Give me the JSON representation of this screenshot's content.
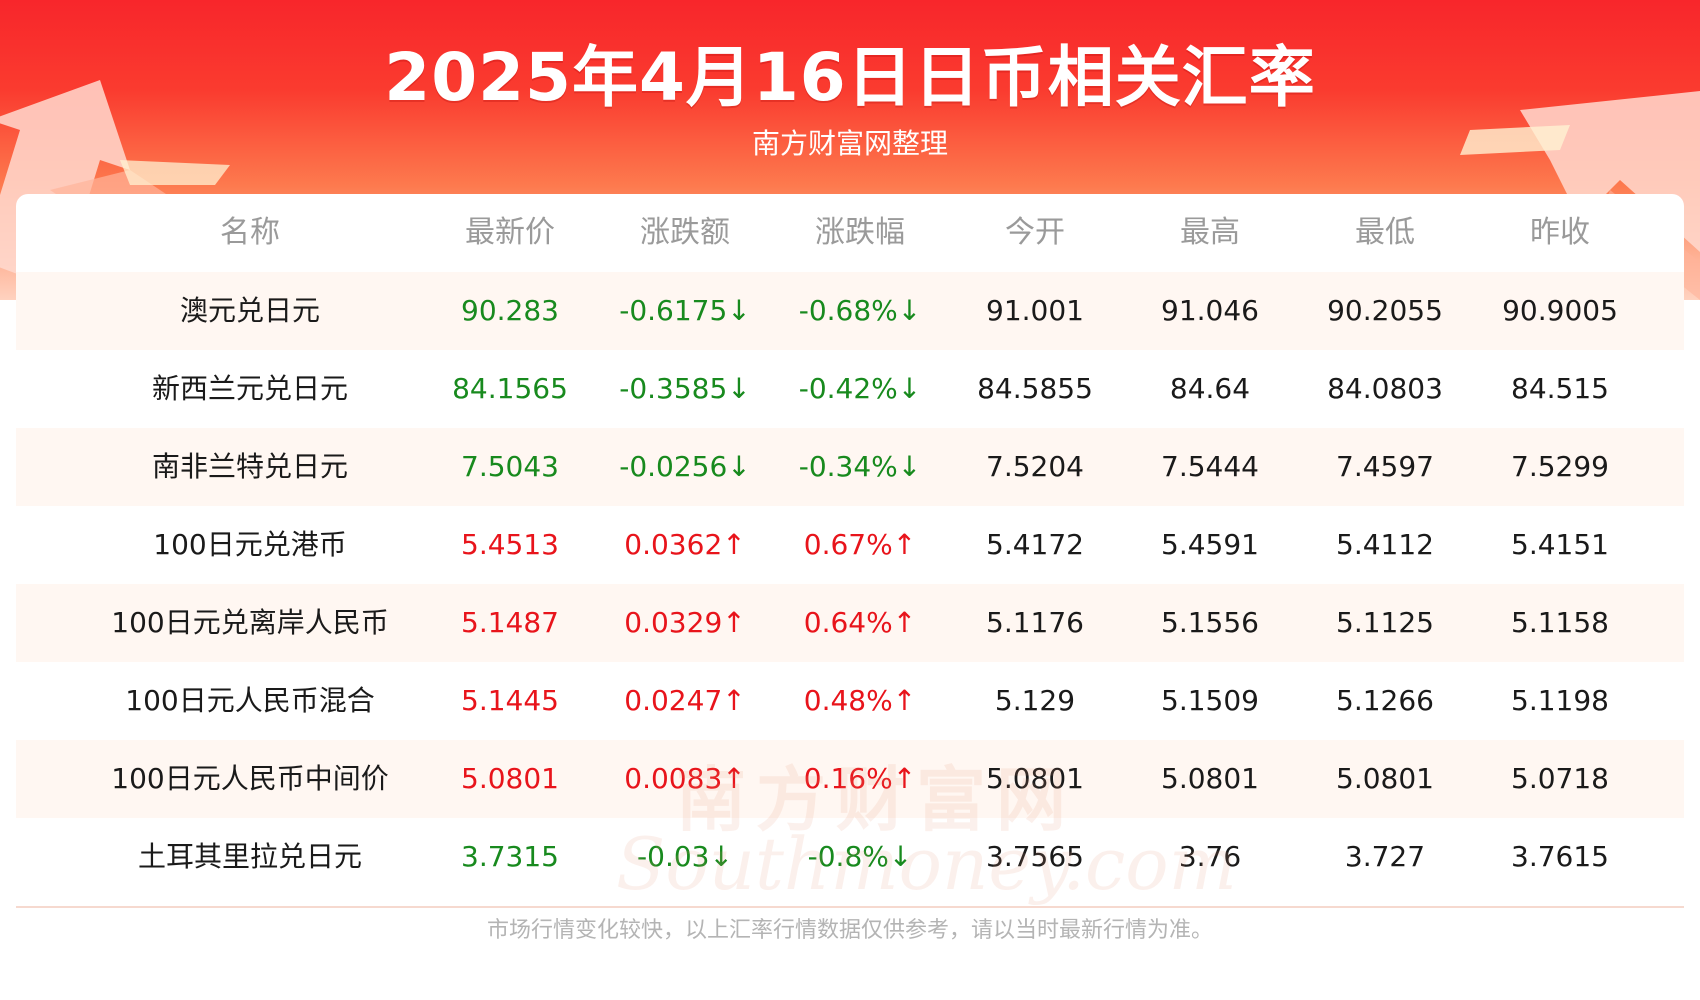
{
  "header": {
    "title": "2025年4月16日日币相关汇率",
    "subtitle": "南方财富网整理"
  },
  "table": {
    "columns": [
      "名称",
      "最新价",
      "涨跌额",
      "涨跌幅",
      "今开",
      "最高",
      "最低",
      "昨收"
    ],
    "rows": [
      {
        "name": "澳元兑日元",
        "latest": "90.283",
        "change": "-0.6175↓",
        "pct": "-0.68%↓",
        "open": "91.001",
        "high": "91.046",
        "low": "90.2055",
        "prev": "90.9005",
        "trend": "down"
      },
      {
        "name": "新西兰元兑日元",
        "latest": "84.1565",
        "change": "-0.3585↓",
        "pct": "-0.42%↓",
        "open": "84.5855",
        "high": "84.64",
        "low": "84.0803",
        "prev": "84.515",
        "trend": "down"
      },
      {
        "name": "南非兰特兑日元",
        "latest": "7.5043",
        "change": "-0.0256↓",
        "pct": "-0.34%↓",
        "open": "7.5204",
        "high": "7.5444",
        "low": "7.4597",
        "prev": "7.5299",
        "trend": "down"
      },
      {
        "name": "100日元兑港币",
        "latest": "5.4513",
        "change": "0.0362↑",
        "pct": "0.67%↑",
        "open": "5.4172",
        "high": "5.4591",
        "low": "5.4112",
        "prev": "5.4151",
        "trend": "up"
      },
      {
        "name": "100日元兑离岸人民币",
        "latest": "5.1487",
        "change": "0.0329↑",
        "pct": "0.64%↑",
        "open": "5.1176",
        "high": "5.1556",
        "low": "5.1125",
        "prev": "5.1158",
        "trend": "up"
      },
      {
        "name": "100日元人民币混合",
        "latest": "5.1445",
        "change": "0.0247↑",
        "pct": "0.48%↑",
        "open": "5.129",
        "high": "5.1509",
        "low": "5.1266",
        "prev": "5.1198",
        "trend": "up"
      },
      {
        "name": "100日元人民币中间价",
        "latest": "5.0801",
        "change": "0.0083↑",
        "pct": "0.16%↑",
        "open": "5.0801",
        "high": "5.0801",
        "low": "5.0801",
        "prev": "5.0718",
        "trend": "up"
      },
      {
        "name": "土耳其里拉兑日元",
        "latest": "3.7315",
        "change": "-0.03↓",
        "pct": "-0.8%↓",
        "open": "3.7565",
        "high": "3.76",
        "low": "3.727",
        "prev": "3.7615",
        "trend": "down"
      }
    ]
  },
  "watermark": {
    "cn": "南方财富网",
    "en": "Southmoney.com"
  },
  "footer": {
    "note": "市场行情变化较快，以上汇率行情数据仅供参考，请以当时最新行情为准。"
  },
  "colors": {
    "up": "#e8141b",
    "down": "#188a1e",
    "header_red": "#f8262b"
  }
}
